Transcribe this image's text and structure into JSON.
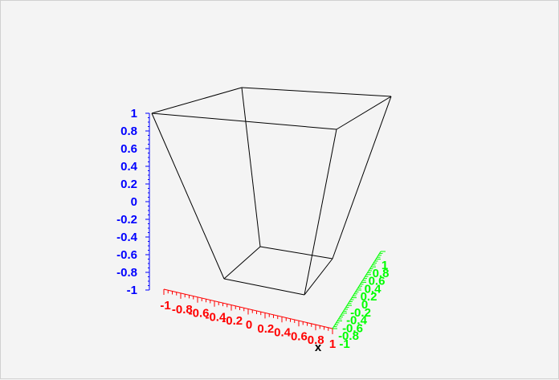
{
  "chart_data": {
    "type": "3d-wireframe",
    "title": "",
    "xlabel": "x",
    "ylabel": "",
    "zlabel": "",
    "xlim": [
      -1,
      1
    ],
    "ylim": [
      -1,
      1
    ],
    "zlim": [
      -1,
      1
    ],
    "x_ticks": [
      "-1",
      "-0.8",
      "-0.6",
      "-0.4",
      "-0.2",
      "0",
      "0.2",
      "0.4",
      "0.6",
      "0.8",
      "1"
    ],
    "y_ticks": [
      "-1",
      "-0.8",
      "-0.6",
      "-0.4",
      "-0.2",
      "0",
      "0.2",
      "0.4",
      "0.6",
      "0.8",
      "1"
    ],
    "z_ticks": [
      "-1",
      "-0.8",
      "-0.6",
      "-0.4",
      "-0.2",
      "0",
      "0.2",
      "0.4",
      "0.6",
      "0.8",
      "1"
    ],
    "colors": {
      "x_axis": "#ff0000",
      "y_axis": "#00ff00",
      "z_axis": "#0000ff",
      "surface": "#000000",
      "background": "#f4f4f4"
    },
    "grid": false
  }
}
